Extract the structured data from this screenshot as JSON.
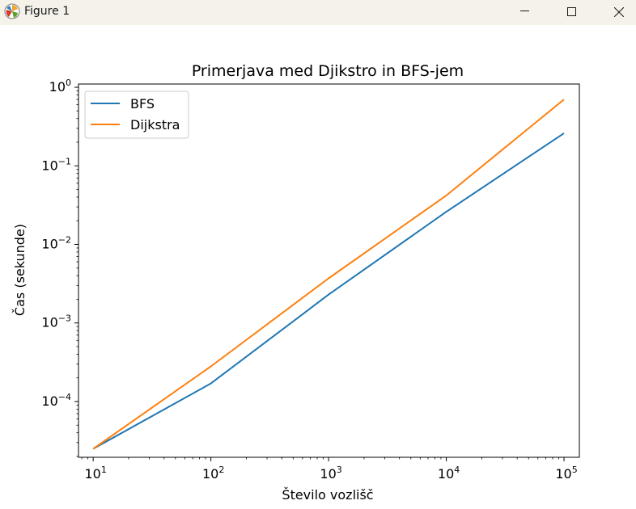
{
  "window": {
    "title": "Figure 1",
    "icons": {
      "app": "matplotlib-icon",
      "minimize": "minimize-icon",
      "maximize": "maximize-icon",
      "close": "close-icon"
    }
  },
  "chart_data": {
    "type": "line",
    "title": "Primerjava med Djikstro in BFS-jem",
    "xlabel": "Število vozlišč",
    "ylabel": "Čas (sekunde)",
    "xscale": "log",
    "yscale": "log",
    "xlim": [
      7.5,
      135000
    ],
    "ylim": [
      1.95e-05,
      1.1
    ],
    "xticks": [
      {
        "value": 10,
        "base": "10",
        "exp": "1"
      },
      {
        "value": 100,
        "base": "10",
        "exp": "2"
      },
      {
        "value": 1000,
        "base": "10",
        "exp": "3"
      },
      {
        "value": 10000,
        "base": "10",
        "exp": "4"
      },
      {
        "value": 100000,
        "base": "10",
        "exp": "5"
      }
    ],
    "yticks": [
      {
        "value": 0.0001,
        "base": "10",
        "exp": "−4"
      },
      {
        "value": 0.001,
        "base": "10",
        "exp": "−3"
      },
      {
        "value": 0.01,
        "base": "10",
        "exp": "−2"
      },
      {
        "value": 0.1,
        "base": "10",
        "exp": "−1"
      },
      {
        "value": 1,
        "base": "10",
        "exp": "0"
      }
    ],
    "x": [
      10,
      100,
      1000,
      10000,
      100000
    ],
    "series": [
      {
        "name": "BFS",
        "color": "#1f77b4",
        "values": [
          2.5e-05,
          0.00017,
          0.0023,
          0.026,
          0.26
        ]
      },
      {
        "name": "Dijkstra",
        "color": "#ff7f0e",
        "values": [
          2.5e-05,
          0.00028,
          0.0037,
          0.042,
          0.7
        ]
      }
    ],
    "grid": false,
    "legend_position": "upper left"
  }
}
